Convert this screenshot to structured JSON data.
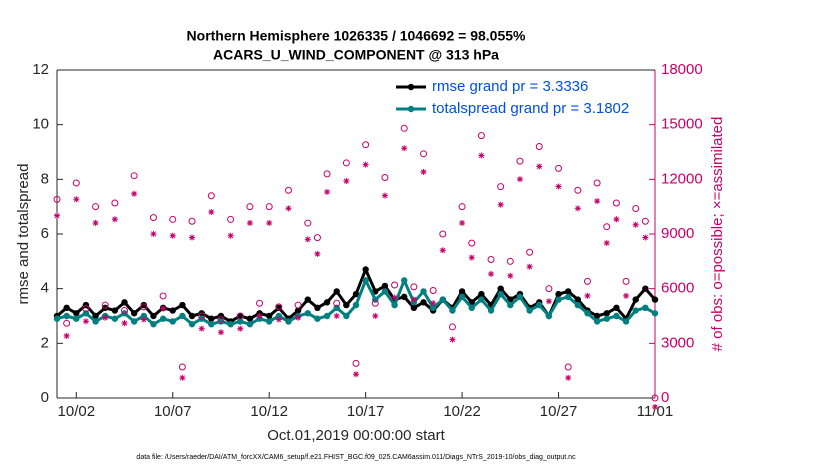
{
  "chart_data": {
    "type": "line",
    "title": "Northern Hemisphere 1026335 / 1046692 = 98.055%",
    "subtitle": "ACARS_U_WIND_COMPONENT @ 313 hPa",
    "xlabel": "Oct.01,2019 00:00:00 start",
    "ylabel": "rmse and totalspread",
    "y2label": "# of obs: o=possible; ×=assimilated",
    "footnote": "data file: /Users/raeder/DAI/ATM_forcXX/CAM6_setup/f.e21.FHIST_BGC.f09_025.CAM6assim.011/Diags_NTrS_2019-10/obs_diag_output.nc",
    "legend": "upper right",
    "xlim": [
      0,
      31
    ],
    "xticks": [
      {
        "value": 1,
        "label": "10/02"
      },
      {
        "value": 6,
        "label": "10/07"
      },
      {
        "value": 11,
        "label": "10/12"
      },
      {
        "value": 16,
        "label": "10/17"
      },
      {
        "value": 21,
        "label": "10/22"
      },
      {
        "value": 26,
        "label": "10/27"
      },
      {
        "value": 31,
        "label": "11/01"
      }
    ],
    "ylim": [
      0,
      12
    ],
    "yticks": [
      0,
      2,
      4,
      6,
      8,
      10,
      12
    ],
    "y2lim": [
      0,
      18000
    ],
    "y2ticks": [
      0,
      3000,
      6000,
      9000,
      12000,
      15000,
      18000
    ],
    "x": [
      0,
      0.5,
      1,
      1.5,
      2,
      2.5,
      3,
      3.5,
      4,
      4.5,
      5,
      5.5,
      6,
      6.5,
      7,
      7.5,
      8,
      8.5,
      9,
      9.5,
      10,
      10.5,
      11,
      11.5,
      12,
      12.5,
      13,
      13.5,
      14,
      14.5,
      15,
      15.5,
      16,
      16.5,
      17,
      17.5,
      18,
      18.5,
      19,
      19.5,
      20,
      20.5,
      21,
      21.5,
      22,
      22.5,
      23,
      23.5,
      24,
      24.5,
      25,
      25.5,
      26,
      26.5,
      27,
      27.5,
      28,
      28.5,
      29,
      29.5,
      30,
      30.5,
      31
    ],
    "series": [
      {
        "name": "rmse grand pr = 3.3336",
        "color": "#000000",
        "marker": "dot",
        "values": [
          3.0,
          3.3,
          3.1,
          3.4,
          3.0,
          3.3,
          3.2,
          3.5,
          3.1,
          3.4,
          3.0,
          3.3,
          3.2,
          3.4,
          3.0,
          3.1,
          2.9,
          3.0,
          2.8,
          3.0,
          2.9,
          3.1,
          3.0,
          3.3,
          2.9,
          3.2,
          3.6,
          3.3,
          3.5,
          3.9,
          3.4,
          3.8,
          4.7,
          3.9,
          4.1,
          3.6,
          3.7,
          3.3,
          3.5,
          3.2,
          3.6,
          3.3,
          3.9,
          3.5,
          3.8,
          3.4,
          4.0,
          3.6,
          3.8,
          3.3,
          3.5,
          3.0,
          3.8,
          3.9,
          3.6,
          3.2,
          3.0,
          3.1,
          3.3,
          2.9,
          3.6,
          4.0,
          3.6
        ]
      },
      {
        "name": "totalspread grand pr = 3.1802",
        "color": "#008080",
        "marker": "dot",
        "values": [
          2.9,
          3.0,
          2.9,
          3.1,
          2.8,
          3.0,
          2.9,
          3.1,
          2.8,
          3.0,
          2.7,
          2.9,
          2.8,
          3.0,
          2.7,
          2.9,
          2.7,
          2.8,
          2.7,
          2.8,
          2.7,
          2.9,
          2.8,
          3.0,
          2.8,
          3.0,
          3.1,
          2.9,
          3.0,
          3.3,
          3.0,
          3.4,
          4.3,
          3.6,
          3.9,
          3.4,
          4.3,
          3.5,
          3.9,
          3.3,
          3.6,
          3.2,
          3.7,
          3.3,
          3.6,
          3.2,
          3.8,
          3.4,
          3.7,
          3.2,
          3.4,
          3.0,
          3.6,
          3.7,
          3.4,
          3.1,
          2.8,
          2.9,
          3.0,
          2.8,
          3.2,
          3.3,
          3.1
        ]
      },
      {
        "color": "#c8006a",
        "marker": "o",
        "axis": "y2",
        "values": [
          10900,
          4100,
          11800,
          4900,
          10500,
          5100,
          10700,
          4800,
          12200,
          5000,
          9900,
          5600,
          9800,
          1700,
          9700,
          4500,
          11100,
          4300,
          9800,
          4500,
          10500,
          5200,
          10500,
          5000,
          11400,
          5100,
          9600,
          8800,
          12300,
          5200,
          12900,
          1900,
          13900,
          5200,
          12100,
          6200,
          14800,
          6100,
          13400,
          5900,
          9000,
          3900,
          10500,
          8500,
          14400,
          7600,
          11600,
          7500,
          13000,
          8000,
          13800,
          6000,
          12600,
          1700,
          11400,
          6400,
          11800,
          9400,
          10700,
          6400,
          10400,
          9700,
          0
        ]
      },
      {
        "color": "#c8006a",
        "marker": "*",
        "axis": "y2",
        "values": [
          10500,
          3900,
          11400,
          4700,
          10100,
          4900,
          10300,
          4600,
          11700,
          4800,
          9500,
          5400,
          9400,
          1600,
          9300,
          4300,
          10700,
          4100,
          9400,
          4300,
          10100,
          5000,
          10100,
          4800,
          10900,
          4900,
          9200,
          8400,
          11800,
          5000,
          12400,
          1800,
          13300,
          5000,
          11600,
          6000,
          14200,
          5900,
          12900,
          5700,
          8600,
          3700,
          10100,
          8200,
          13800,
          7300,
          11100,
          7200,
          12500,
          7700,
          13200,
          5800,
          12100,
          1600,
          10900,
          6100,
          11300,
          9000,
          10300,
          6100,
          10000,
          9300,
          0
        ]
      }
    ]
  }
}
